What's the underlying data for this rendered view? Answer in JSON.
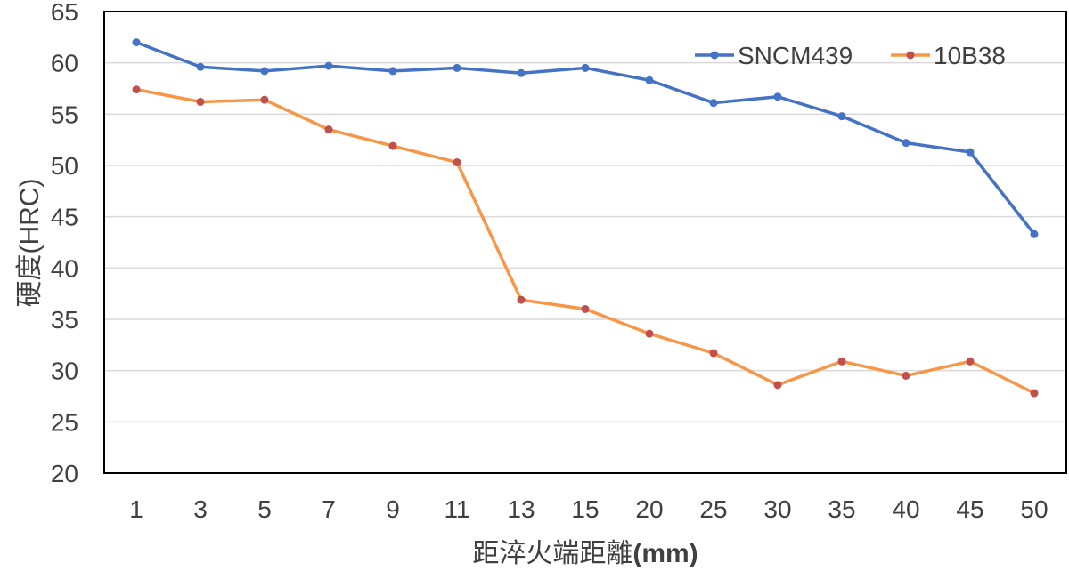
{
  "chart_data": {
    "type": "line",
    "title": "",
    "xlabel": "距淬火端距離(mm)",
    "ylabel": "硬度(HRC)",
    "categories": [
      "1",
      "3",
      "5",
      "7",
      "9",
      "11",
      "13",
      "15",
      "20",
      "25",
      "30",
      "35",
      "40",
      "45",
      "50"
    ],
    "ylim": [
      20,
      65
    ],
    "yticks": [
      20,
      25,
      30,
      35,
      40,
      45,
      50,
      55,
      60,
      65
    ],
    "grid": true,
    "legend_position": "top-right",
    "series": [
      {
        "name": "SNCM439",
        "color": "#4472C4",
        "marker_color": "#4472C4",
        "values": [
          62.0,
          59.6,
          59.2,
          59.7,
          59.2,
          59.5,
          59.0,
          59.5,
          58.3,
          56.1,
          56.7,
          54.8,
          52.2,
          51.3,
          43.3
        ]
      },
      {
        "name": "10B38",
        "color": "#F79646",
        "marker_color": "#C0504D",
        "values": [
          57.4,
          56.2,
          56.4,
          53.5,
          51.9,
          50.3,
          36.9,
          36.0,
          33.6,
          31.7,
          28.6,
          30.9,
          29.5,
          30.9,
          27.8
        ]
      }
    ]
  }
}
